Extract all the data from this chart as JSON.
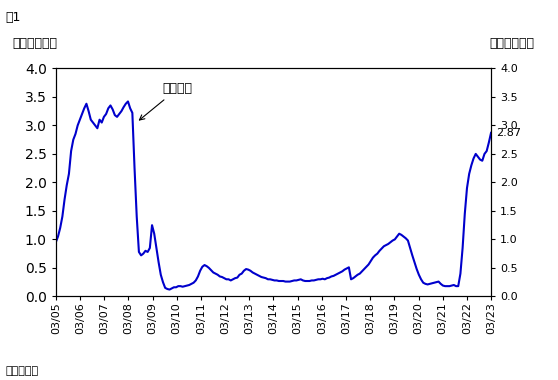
{
  "title": "圖1",
  "ylabel_left": "年利率（厘）",
  "ylabel_right": "年利率（厘）",
  "xlabel_note": "期末數字。",
  "annotation_label": "綜合利率",
  "last_value_label": "2.87",
  "line_color": "#0000CC",
  "line_width": 1.5,
  "ylim": [
    0.0,
    4.0
  ],
  "yticks": [
    0.0,
    0.5,
    1.0,
    1.5,
    2.0,
    2.5,
    3.0,
    3.5,
    4.0
  ],
  "x_labels": [
    "03/05",
    "03/06",
    "03/07",
    "03/08",
    "03/09",
    "03/10",
    "03/11",
    "03/12",
    "03/13",
    "03/14",
    "03/15",
    "03/16",
    "03/17",
    "03/18",
    "03/19",
    "03/20",
    "03/21",
    "03/22",
    "03/23"
  ],
  "background_color": "#ffffff",
  "font_size": 9,
  "series": [
    0.95,
    1.05,
    1.2,
    1.4,
    1.7,
    1.95,
    2.15,
    2.55,
    2.75,
    2.85,
    3.0,
    3.1,
    3.2,
    3.3,
    3.38,
    3.25,
    3.1,
    3.05,
    3.0,
    2.95,
    3.1,
    3.05,
    3.15,
    3.2,
    3.3,
    3.35,
    3.28,
    3.18,
    3.15,
    3.2,
    3.25,
    3.32,
    3.38,
    3.42,
    3.3,
    3.22,
    2.25,
    1.4,
    0.78,
    0.72,
    0.75,
    0.8,
    0.78,
    0.85,
    1.25,
    1.1,
    0.85,
    0.6,
    0.38,
    0.25,
    0.15,
    0.13,
    0.12,
    0.14,
    0.16,
    0.16,
    0.18,
    0.18,
    0.17,
    0.18,
    0.19,
    0.2,
    0.22,
    0.24,
    0.28,
    0.35,
    0.45,
    0.52,
    0.55,
    0.53,
    0.5,
    0.46,
    0.42,
    0.4,
    0.38,
    0.35,
    0.34,
    0.32,
    0.3,
    0.3,
    0.28,
    0.3,
    0.32,
    0.33,
    0.38,
    0.4,
    0.45,
    0.48,
    0.47,
    0.45,
    0.42,
    0.4,
    0.38,
    0.36,
    0.34,
    0.33,
    0.32,
    0.3,
    0.3,
    0.29,
    0.28,
    0.28,
    0.27,
    0.27,
    0.27,
    0.26,
    0.26,
    0.26,
    0.27,
    0.28,
    0.28,
    0.29,
    0.3,
    0.28,
    0.27,
    0.27,
    0.27,
    0.28,
    0.28,
    0.29,
    0.3,
    0.3,
    0.31,
    0.3,
    0.32,
    0.33,
    0.35,
    0.36,
    0.38,
    0.4,
    0.42,
    0.44,
    0.47,
    0.49,
    0.51,
    0.3,
    0.32,
    0.35,
    0.38,
    0.4,
    0.44,
    0.48,
    0.52,
    0.56,
    0.62,
    0.68,
    0.72,
    0.75,
    0.8,
    0.84,
    0.88,
    0.9,
    0.92,
    0.95,
    0.98,
    1.0,
    1.05,
    1.1,
    1.08,
    1.05,
    1.02,
    0.98,
    0.85,
    0.72,
    0.6,
    0.48,
    0.38,
    0.3,
    0.24,
    0.22,
    0.21,
    0.22,
    0.23,
    0.24,
    0.25,
    0.26,
    0.22,
    0.19,
    0.18,
    0.18,
    0.18,
    0.19,
    0.2,
    0.18,
    0.18,
    0.4,
    0.85,
    1.45,
    1.9,
    2.15,
    2.3,
    2.42,
    2.5,
    2.45,
    2.4,
    2.38,
    2.5,
    2.55,
    2.7,
    2.87
  ]
}
